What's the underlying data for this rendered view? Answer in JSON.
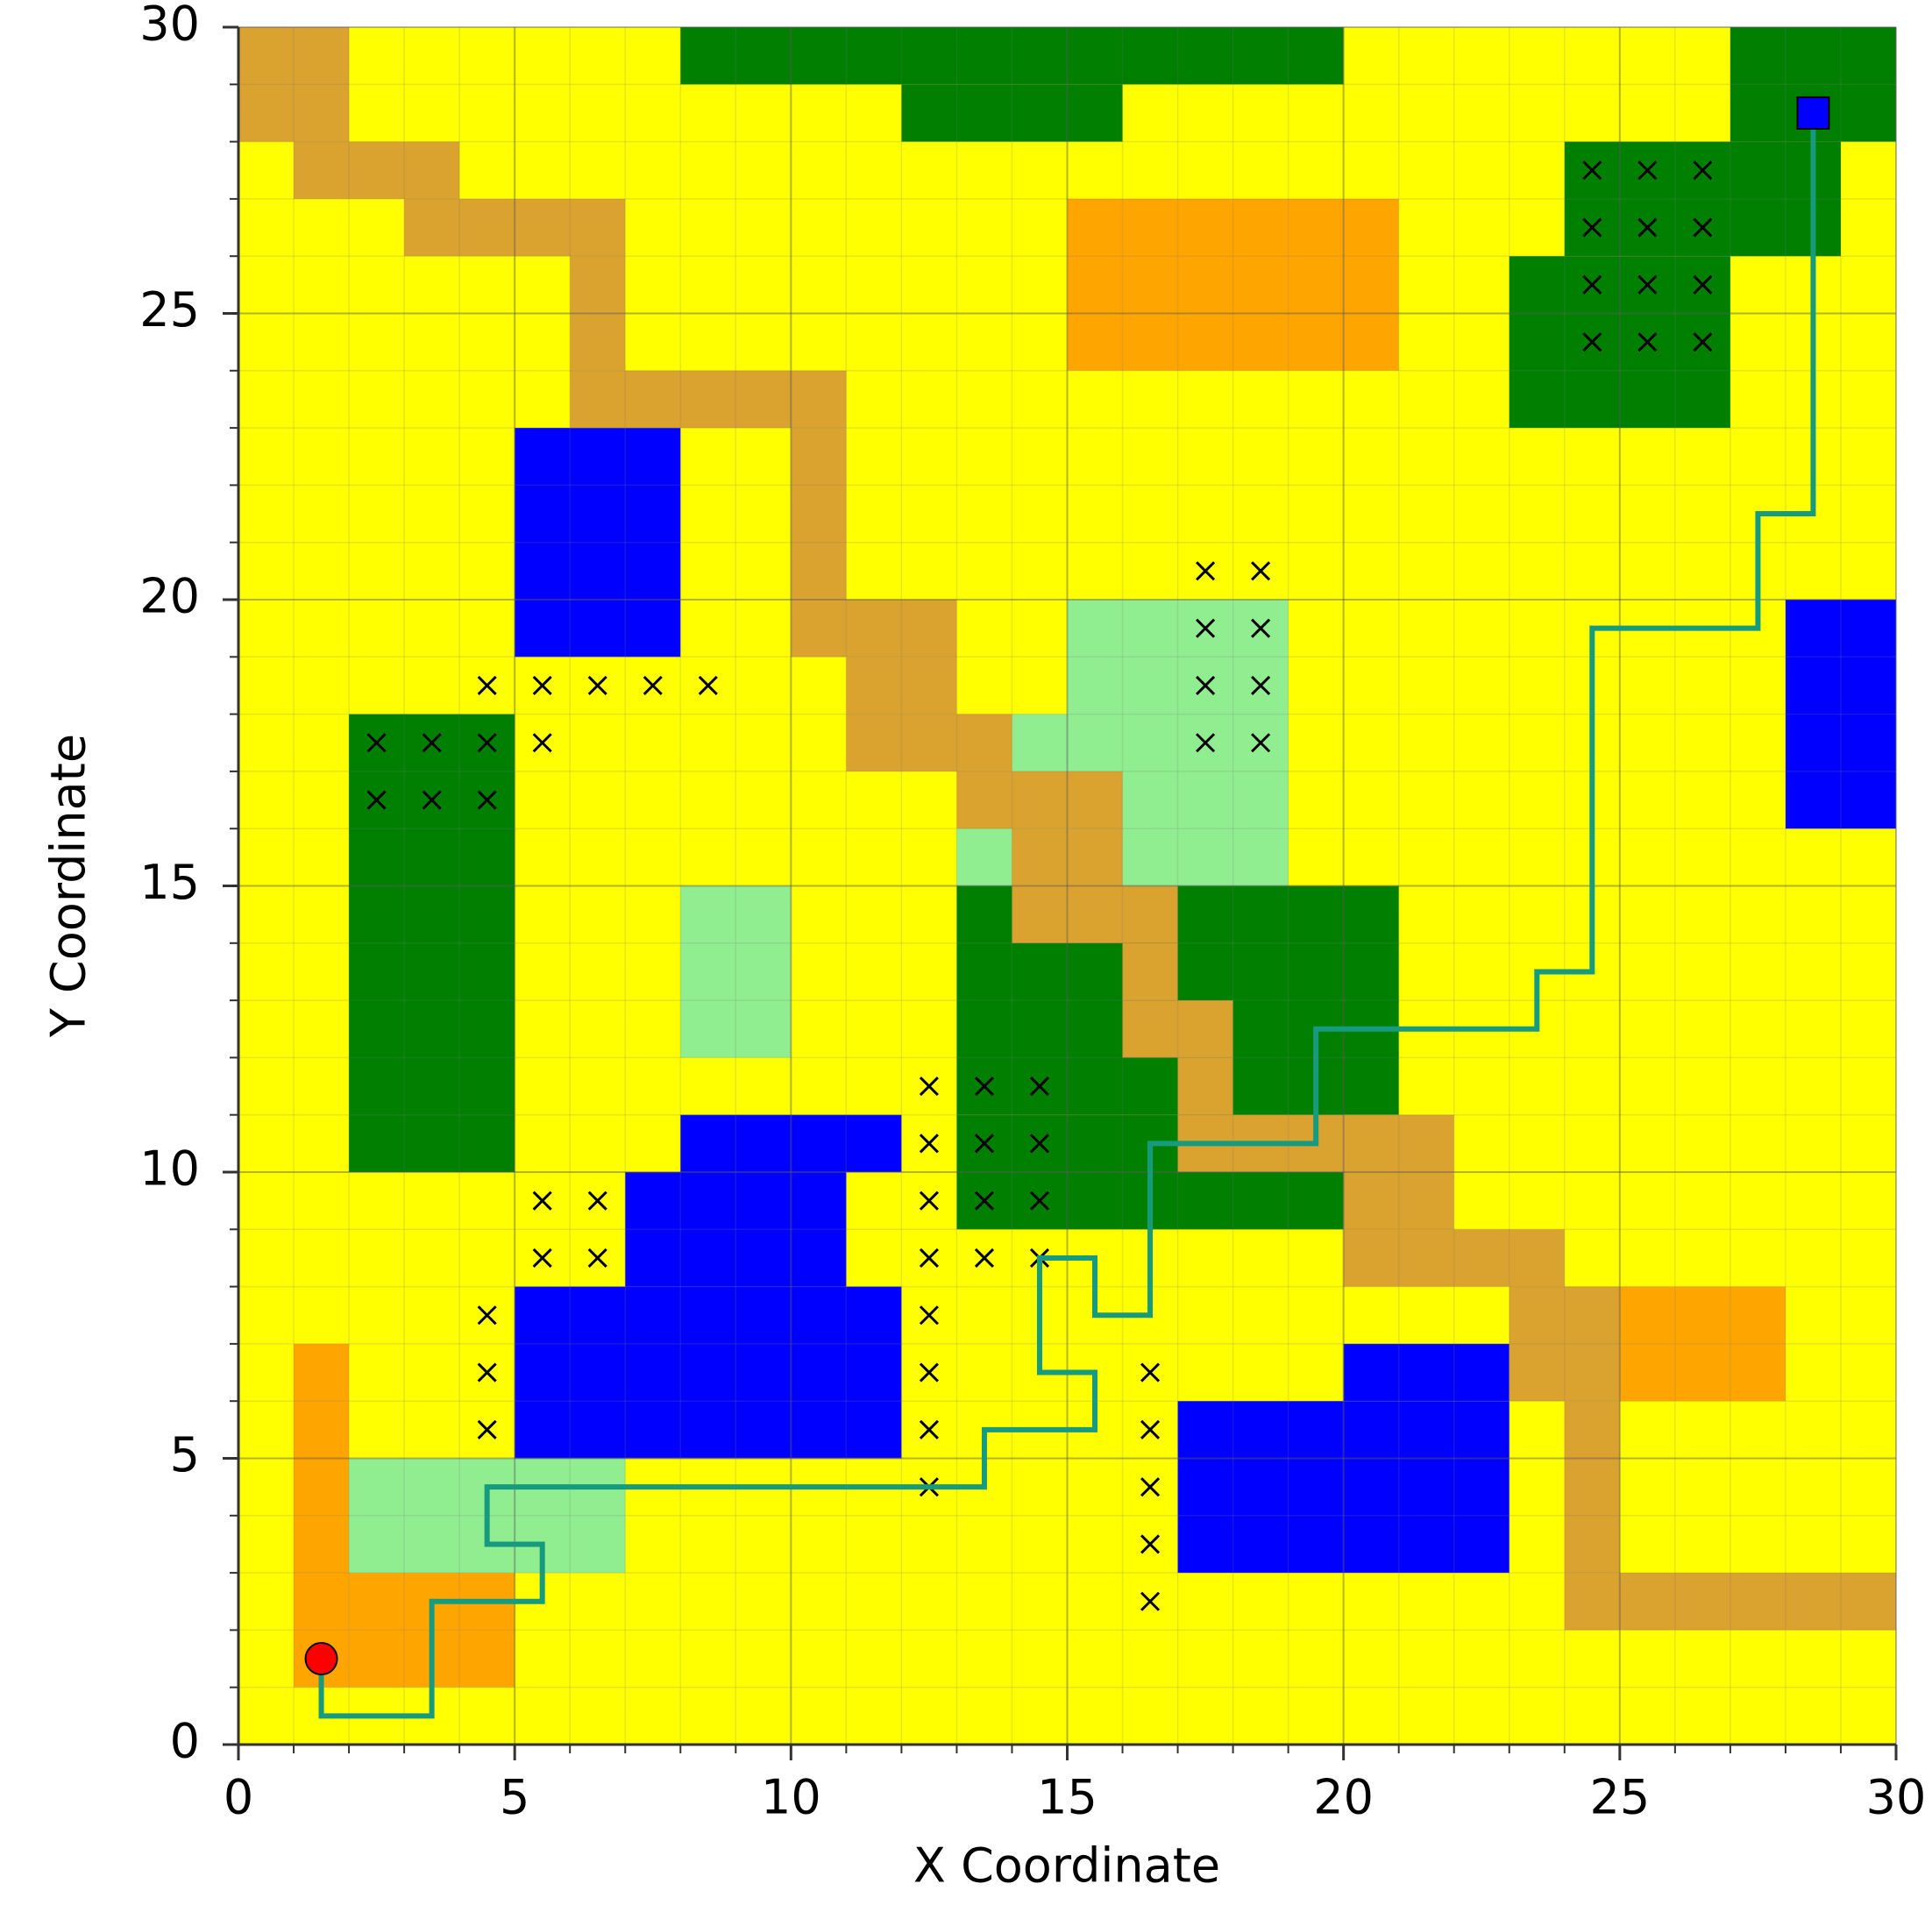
{
  "chart_data": {
    "type": "gridmap",
    "x_label": "X Coordinate",
    "y_label": "Y Coordinate",
    "xlim": [
      0,
      30
    ],
    "ylim": [
      0,
      30
    ],
    "xticks": [
      0,
      5,
      10,
      15,
      20,
      25,
      30
    ],
    "yticks": [
      0,
      5,
      10,
      15,
      20,
      25,
      30
    ],
    "xminor_ticks": [
      0,
      1,
      2,
      3,
      4,
      5,
      6,
      7,
      8,
      9,
      10,
      11,
      12,
      13,
      14,
      15,
      16,
      17,
      18,
      19,
      20,
      21,
      22,
      23,
      24,
      25,
      26,
      27,
      28,
      29,
      30
    ],
    "yminor_ticks": [
      0,
      1,
      2,
      3,
      4,
      5,
      6,
      7,
      8,
      9,
      10,
      11,
      12,
      13,
      14,
      15,
      16,
      17,
      18,
      19,
      20,
      21,
      22,
      23,
      24,
      25,
      26,
      27,
      28,
      29,
      30
    ],
    "grid": true,
    "background": "#ffff00",
    "regions": [
      {
        "color": "#ffa500",
        "x": [
          1,
          2
        ],
        "y": [
          1,
          7
        ]
      },
      {
        "color": "#ffa500",
        "x": [
          2,
          5
        ],
        "y": [
          1,
          3
        ]
      },
      {
        "color": "#ffa500",
        "x": [
          15,
          21
        ],
        "y": [
          24,
          27
        ]
      },
      {
        "color": "#ffa500",
        "x": [
          25,
          28
        ],
        "y": [
          6,
          8
        ]
      },
      {
        "color": "#007f00",
        "x": [
          8,
          20
        ],
        "y": [
          29,
          30
        ]
      },
      {
        "color": "#007f00",
        "x": [
          12,
          16
        ],
        "y": [
          28,
          29
        ]
      },
      {
        "color": "#007f00",
        "x": [
          27,
          30
        ],
        "y": [
          28,
          30
        ]
      },
      {
        "color": "#007f00",
        "x": [
          24,
          29
        ],
        "y": [
          26,
          28
        ]
      },
      {
        "color": "#007f00",
        "x": [
          23,
          27
        ],
        "y": [
          23,
          26
        ]
      },
      {
        "color": "#007f00",
        "x": [
          2,
          5
        ],
        "y": [
          10,
          18
        ]
      },
      {
        "color": "#007f00",
        "x": [
          13,
          20
        ],
        "y": [
          9,
          11
        ]
      },
      {
        "color": "#007f00",
        "x": [
          13,
          21
        ],
        "y": [
          11,
          15
        ]
      },
      {
        "color": "#90ee90",
        "x": [
          2,
          7
        ],
        "y": [
          3,
          5
        ]
      },
      {
        "color": "#90ee90",
        "x": [
          8,
          10
        ],
        "y": [
          12,
          15
        ]
      },
      {
        "color": "#90ee90",
        "x": [
          15,
          19
        ],
        "y": [
          15,
          20
        ]
      },
      {
        "color": "#90ee90",
        "x": [
          14,
          15
        ],
        "y": [
          16,
          18
        ]
      },
      {
        "color": "#90ee90",
        "x": [
          13,
          14
        ],
        "y": [
          15,
          16
        ]
      },
      {
        "color": "#0000ff",
        "x": [
          5,
          8
        ],
        "y": [
          19,
          23
        ]
      },
      {
        "color": "#0000ff",
        "x": [
          28,
          30
        ],
        "y": [
          16,
          20
        ]
      },
      {
        "color": "#0000ff",
        "x": [
          8,
          12
        ],
        "y": [
          10,
          11
        ]
      },
      {
        "color": "#0000ff",
        "x": [
          7,
          11
        ],
        "y": [
          8,
          10
        ]
      },
      {
        "color": "#0000ff",
        "x": [
          5,
          12
        ],
        "y": [
          5,
          8
        ]
      },
      {
        "color": "#0000ff",
        "x": [
          17,
          23
        ],
        "y": [
          3,
          6
        ]
      },
      {
        "color": "#0000ff",
        "x": [
          20,
          23
        ],
        "y": [
          6,
          7
        ]
      },
      {
        "color": "#daa22e",
        "x": [
          0,
          2
        ],
        "y": [
          28,
          30
        ]
      },
      {
        "color": "#daa22e",
        "x": [
          1,
          4
        ],
        "y": [
          27,
          28
        ]
      },
      {
        "color": "#daa22e",
        "x": [
          3,
          7
        ],
        "y": [
          26,
          27
        ]
      },
      {
        "color": "#daa22e",
        "x": [
          6,
          7
        ],
        "y": [
          24,
          26
        ]
      },
      {
        "color": "#daa22e",
        "x": [
          6,
          11
        ],
        "y": [
          23,
          24
        ]
      },
      {
        "color": "#daa22e",
        "x": [
          10,
          11
        ],
        "y": [
          20,
          23
        ]
      },
      {
        "color": "#daa22e",
        "x": [
          10,
          13
        ],
        "y": [
          19,
          20
        ]
      },
      {
        "color": "#daa22e",
        "x": [
          11,
          13
        ],
        "y": [
          18,
          19
        ]
      },
      {
        "color": "#daa22e",
        "x": [
          11,
          14
        ],
        "y": [
          17,
          18
        ]
      },
      {
        "color": "#daa22e",
        "x": [
          13,
          16
        ],
        "y": [
          16,
          17
        ]
      },
      {
        "color": "#daa22e",
        "x": [
          14,
          16
        ],
        "y": [
          15,
          16
        ]
      },
      {
        "color": "#daa22e",
        "x": [
          14,
          17
        ],
        "y": [
          14,
          15
        ]
      },
      {
        "color": "#daa22e",
        "x": [
          16,
          17
        ],
        "y": [
          13,
          14
        ]
      },
      {
        "color": "#daa22e",
        "x": [
          16,
          18
        ],
        "y": [
          12,
          13
        ]
      },
      {
        "color": "#daa22e",
        "x": [
          17,
          18
        ],
        "y": [
          11,
          12
        ]
      },
      {
        "color": "#daa22e",
        "x": [
          17,
          22
        ],
        "y": [
          10,
          11
        ]
      },
      {
        "color": "#daa22e",
        "x": [
          20,
          22
        ],
        "y": [
          9,
          10
        ]
      },
      {
        "color": "#daa22e",
        "x": [
          20,
          24
        ],
        "y": [
          8,
          9
        ]
      },
      {
        "color": "#daa22e",
        "x": [
          23,
          25
        ],
        "y": [
          6,
          8
        ]
      },
      {
        "color": "#daa22e",
        "x": [
          24,
          25
        ],
        "y": [
          3,
          6
        ]
      },
      {
        "color": "#daa22e",
        "x": [
          24,
          30
        ],
        "y": [
          2,
          3
        ]
      }
    ],
    "obstacles": {
      "color": "#000000",
      "x": [
        24.5,
        25.5,
        26.5,
        24.5,
        25.5,
        26.5,
        24.5,
        25.5,
        26.5,
        24.5,
        25.5,
        26.5,
        17.5,
        18.5,
        17.5,
        18.5,
        17.5,
        18.5,
        17.5,
        18.5,
        4.5,
        5.5,
        6.5,
        7.5,
        8.5,
        5.5,
        2.5,
        3.5,
        4.5,
        2.5,
        3.5,
        4.5,
        5.5,
        6.5,
        5.5,
        6.5,
        4.5,
        4.5,
        4.5,
        12.5,
        12.5,
        12.5,
        12.5,
        12.5,
        12.5,
        12.5,
        12.5,
        13.5,
        13.5,
        13.5,
        13.5,
        14.5,
        14.5,
        14.5,
        14.5,
        16.5,
        16.5,
        16.5,
        16.5,
        16.5
      ],
      "y": [
        27.5,
        27.5,
        27.5,
        26.5,
        26.5,
        26.5,
        25.5,
        25.5,
        25.5,
        24.5,
        24.5,
        24.5,
        20.5,
        20.5,
        19.5,
        19.5,
        18.5,
        18.5,
        17.5,
        17.5,
        18.5,
        18.5,
        18.5,
        18.5,
        18.5,
        17.5,
        17.5,
        17.5,
        17.5,
        16.5,
        16.5,
        16.5,
        9.5,
        9.5,
        8.5,
        8.5,
        7.5,
        6.5,
        5.5,
        11.5,
        10.5,
        9.5,
        8.5,
        7.5,
        6.5,
        5.5,
        4.5,
        11.5,
        10.5,
        9.5,
        8.5,
        11.5,
        10.5,
        9.5,
        8.5,
        6.5,
        5.5,
        4.5,
        3.5,
        2.5
      ]
    },
    "path": {
      "color": "#169b7e",
      "x": [
        1.5,
        1.5,
        3.5,
        3.5,
        5.5,
        5.5,
        4.5,
        4.5,
        13.5,
        13.5,
        15.5,
        15.5,
        14.5,
        14.5,
        15.5,
        15.5,
        16.5,
        16.5,
        19.5,
        19.5,
        23.5,
        23.5,
        24.5,
        24.5,
        27.5,
        27.5,
        28.5,
        28.5
      ],
      "y": [
        1.5,
        0.5,
        0.5,
        2.5,
        2.5,
        3.5,
        3.5,
        4.5,
        4.5,
        5.5,
        5.5,
        6.5,
        6.5,
        8.5,
        8.5,
        7.5,
        7.5,
        10.5,
        10.5,
        12.5,
        12.5,
        13.5,
        13.5,
        19.5,
        19.5,
        21.5,
        21.5,
        28.5
      ]
    },
    "start": {
      "x": 1.5,
      "y": 1.5,
      "color": "#ff0000"
    },
    "goal": {
      "x": 28.5,
      "y": 28.5,
      "color": "#0000ff"
    }
  }
}
